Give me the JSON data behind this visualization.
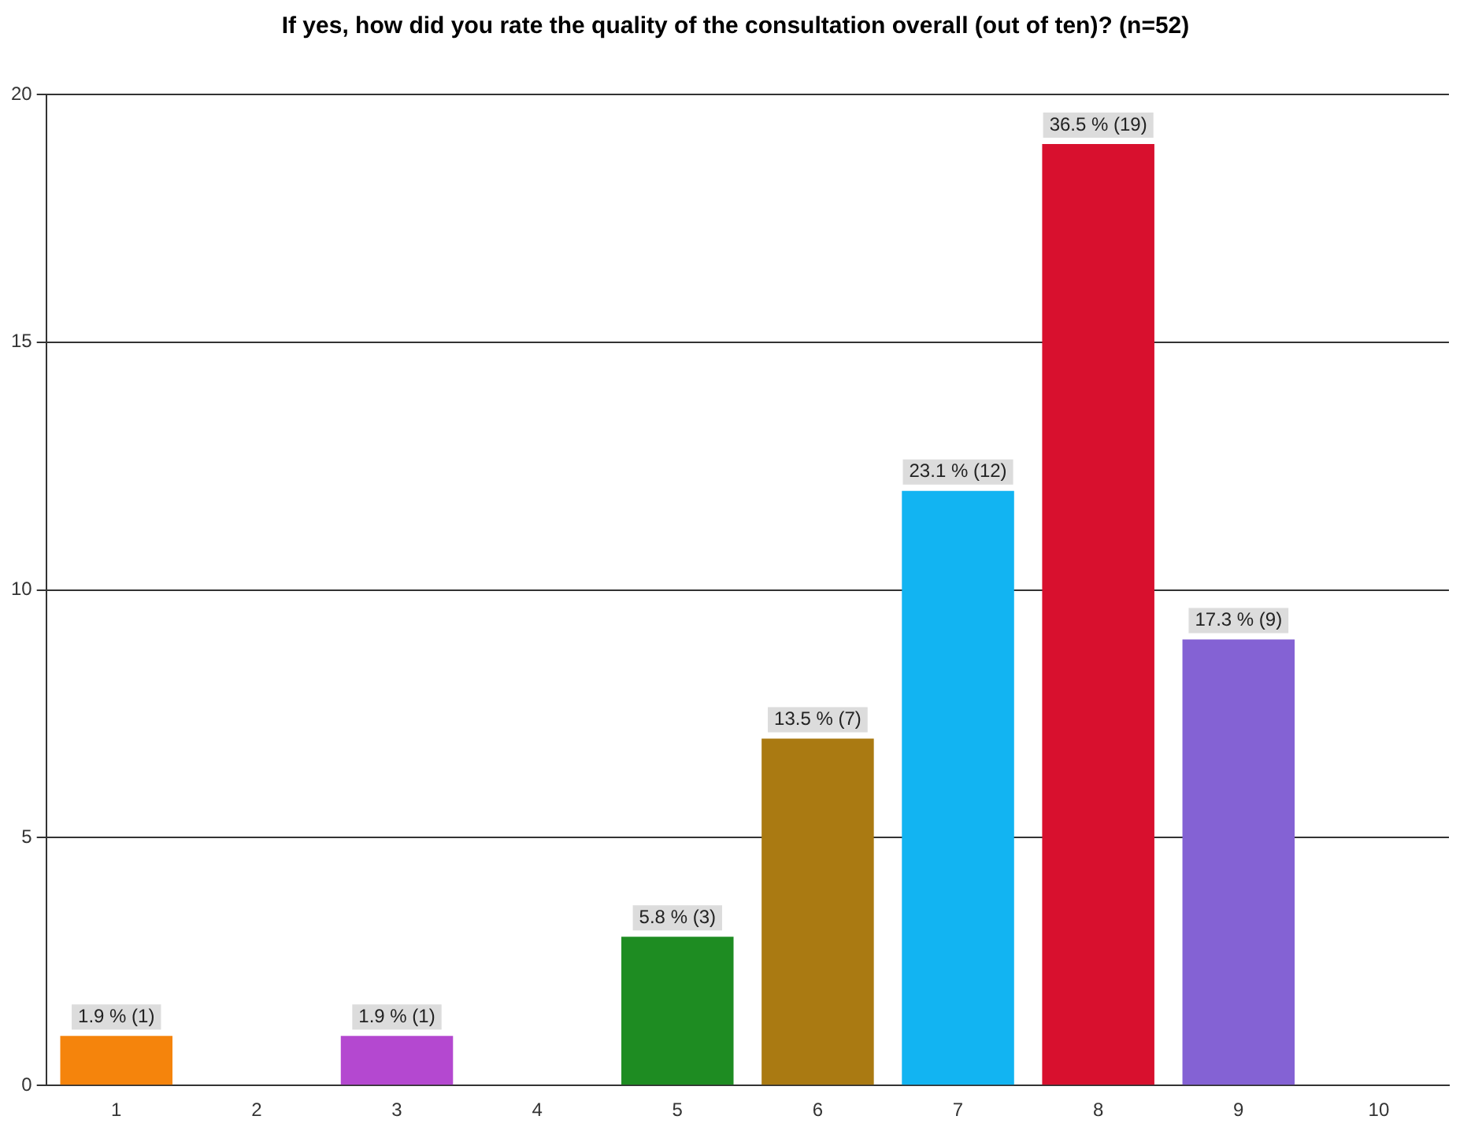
{
  "chart_data": {
    "type": "bar",
    "title": "If yes, how did you rate the quality of the consultation overall (out of ten)? (n=52)",
    "categories": [
      "1",
      "2",
      "3",
      "4",
      "5",
      "6",
      "7",
      "8",
      "9",
      "10"
    ],
    "values": [
      1,
      0,
      1,
      0,
      3,
      7,
      12,
      19,
      9,
      0
    ],
    "colors": [
      "#f5840c",
      "#3b7dd8",
      "#b448d0",
      "#3b7dd8",
      "#1e8c22",
      "#aa7a12",
      "#12b4f2",
      "#d8102e",
      "#8462d4",
      "#3b7dd8"
    ],
    "value_labels": [
      "1.9 % (1)",
      null,
      "1.9 % (1)",
      null,
      "5.8 % (3)",
      "13.5 % (7)",
      "23.1 % (12)",
      "36.5 % (19)",
      "17.3 % (9)",
      null
    ],
    "ylim": [
      0,
      20
    ],
    "yticks": [
      0,
      5,
      10,
      15,
      20
    ],
    "grid": "y",
    "legend": false
  }
}
